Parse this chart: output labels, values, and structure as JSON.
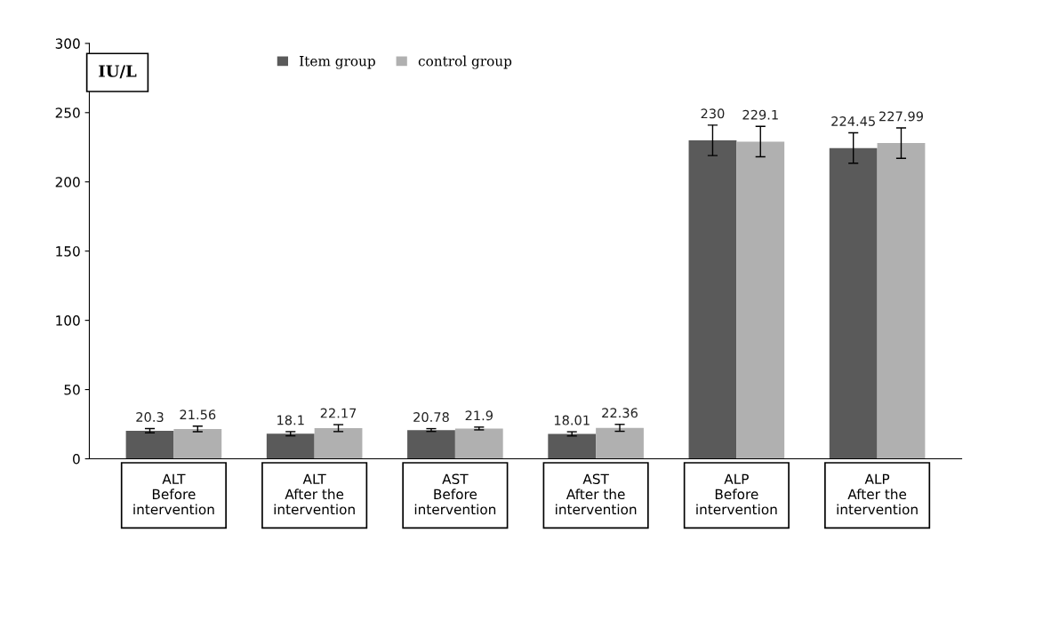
{
  "chart_data": {
    "type": "bar",
    "ylabel": "IU/L",
    "categories": [
      "ALT\nBefore\nintervention",
      "ALT\nAfter the\nintervention",
      "AST\nBefore\nintervention",
      "AST\nAfter the\nintervention",
      "ALP\nBefore\nintervention",
      "ALP\nAfter the\nintervention"
    ],
    "series": [
      {
        "name": "Item group",
        "color": "#5a5a5a",
        "values": [
          20.3,
          18.1,
          20.78,
          18.01,
          230,
          224.45
        ],
        "errors": [
          1.5,
          1.5,
          1,
          1.5,
          11,
          11
        ]
      },
      {
        "name": "control group",
        "color": "#b0b0b0",
        "values": [
          21.56,
          22.17,
          21.9,
          22.36,
          229.1,
          227.99
        ],
        "errors": [
          2,
          2.5,
          1,
          2.5,
          11,
          11
        ]
      }
    ],
    "ylim": [
      0,
      300
    ],
    "yticks": [
      0,
      50,
      100,
      150,
      200,
      250,
      300
    ],
    "data_labels": true,
    "grid": false,
    "legend": "top"
  }
}
